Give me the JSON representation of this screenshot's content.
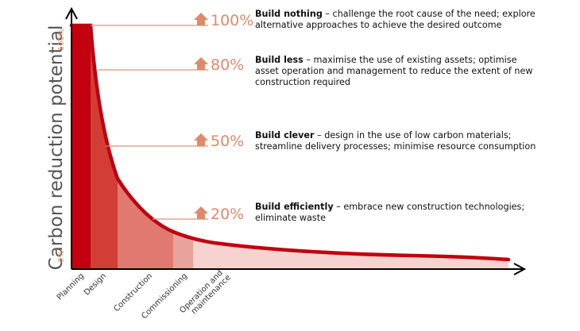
{
  "axis": {
    "y_label": "Carbon reduction potential",
    "y_top_tick": "100%",
    "y_bottom_tick": "0%"
  },
  "stages": [
    {
      "label": "Planning"
    },
    {
      "label": "Design"
    },
    {
      "label": "Construction"
    },
    {
      "label": "Commissioning"
    },
    {
      "label_line1": "Operation and",
      "label_line2": "maintenance"
    }
  ],
  "levels": [
    {
      "percent": "100%",
      "title": "Build nothing",
      "line1_rest": " – challenge the root cause of the need; explore",
      "line2": "alternative approaches to achieve the desired outcome"
    },
    {
      "percent": "80%",
      "title": "Build less",
      "line1_rest": " – maximise the use of existing assets; optimise",
      "line2": "asset operation and management to reduce the extent of new",
      "line3": "construction required"
    },
    {
      "percent": "50%",
      "title": "Build clever",
      "line1_rest": " – design in the use of low carbon materials;",
      "line2": "streamline delivery processes; minimise resource consumption"
    },
    {
      "percent": "20%",
      "title": "Build efficiently",
      "line1_rest": " – embrace new construction technologies;",
      "line2": "eliminate waste"
    }
  ],
  "colors": {
    "curve": "#c0000f",
    "planning": "#c3000f",
    "design": "#d23e35",
    "construction": "#e07a70",
    "commissioning": "#e8a39c",
    "operation": "#f6d3cf",
    "arrow": "#e0896a",
    "leader": "#e39170"
  }
}
